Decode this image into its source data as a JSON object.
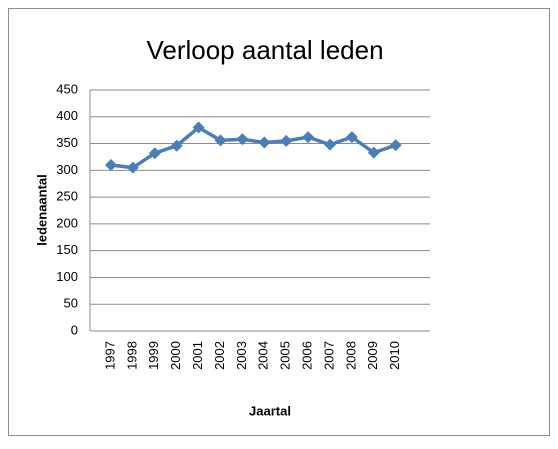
{
  "chart_data": {
    "type": "line",
    "title": "Verloop aantal leden",
    "x_label": "Jaartal",
    "y_label": "ledenaantal",
    "categories": [
      "1997",
      "1998",
      "1999",
      "2000",
      "2001",
      "2002",
      "2003",
      "2004",
      "2005",
      "2006",
      "2007",
      "2008",
      "2009",
      "2010"
    ],
    "series": [
      {
        "color": "#4a7ebb",
        "values": [
          310,
          305,
          332,
          346,
          380,
          356,
          358,
          352,
          355,
          362,
          348,
          362,
          333,
          347
        ]
      }
    ],
    "ylim": [
      0,
      450
    ],
    "yticks": [
      0,
      50,
      100,
      150,
      200,
      250,
      300,
      350,
      400,
      450
    ],
    "grid": true
  }
}
